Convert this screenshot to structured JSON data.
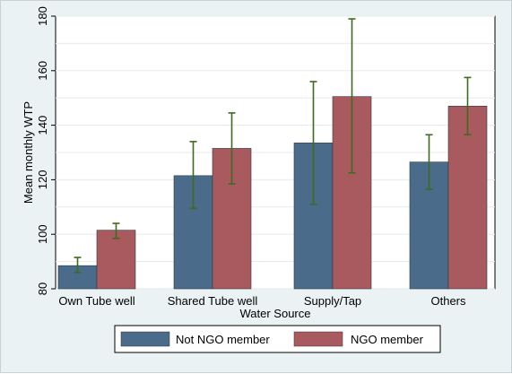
{
  "chart_data": {
    "type": "bar",
    "categories": [
      "Own Tube well",
      "Shared Tube well",
      "Supply/Tap",
      "Others"
    ],
    "series": [
      {
        "name": "Not NGO member",
        "color": "#4a6b8a",
        "values": [
          88.5,
          121.5,
          133.5,
          126.5
        ],
        "ci_low": [
          86,
          109.5,
          111,
          116.5
        ],
        "ci_high": [
          91.5,
          134,
          156,
          136.5
        ]
      },
      {
        "name": "NGO member",
        "color": "#a85a5e",
        "values": [
          101.5,
          131.5,
          150.5,
          147
        ],
        "ci_low": [
          98.5,
          118.5,
          122.5,
          136.5
        ],
        "ci_high": [
          104,
          144.5,
          179,
          157.5
        ]
      }
    ],
    "error_bar_color": "#3d6b1f",
    "xlabel": "Water Source",
    "ylabel": "Mean monthly WTP",
    "ylim": [
      80,
      180
    ],
    "yticks": [
      80,
      100,
      120,
      140,
      160,
      180
    ],
    "grid": true,
    "legend_position": "bottom"
  }
}
